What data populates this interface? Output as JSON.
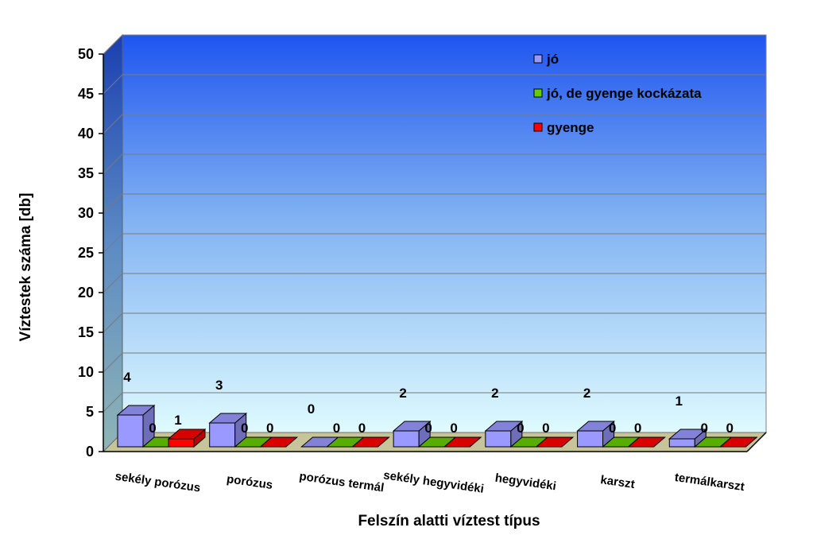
{
  "chart_data": {
    "type": "bar",
    "title": "",
    "xlabel": "Felszín alatti víztest típus",
    "ylabel": "Víztestek száma [db]",
    "ylim": [
      0,
      50
    ],
    "yticks": [
      0,
      5,
      10,
      15,
      20,
      25,
      30,
      35,
      40,
      45,
      50
    ],
    "grid": true,
    "legend_position": "top-right",
    "categories": [
      "sekély porózus",
      "porózus",
      "porózus termál",
      "sekély hegyvidéki",
      "hegyvidéki",
      "karszt",
      "termálkarszt"
    ],
    "series": [
      {
        "name": "jó",
        "values": [
          4,
          3,
          0,
          2,
          2,
          2,
          1
        ],
        "color": "#9999FF"
      },
      {
        "name": "jó, de gyenge kockázata",
        "values": [
          0,
          0,
          0,
          0,
          0,
          0,
          0
        ],
        "color": "#66CC00"
      },
      {
        "name": "gyenge",
        "values": [
          1,
          0,
          0,
          0,
          0,
          0,
          0
        ],
        "color": "#FF0000"
      }
    ]
  }
}
